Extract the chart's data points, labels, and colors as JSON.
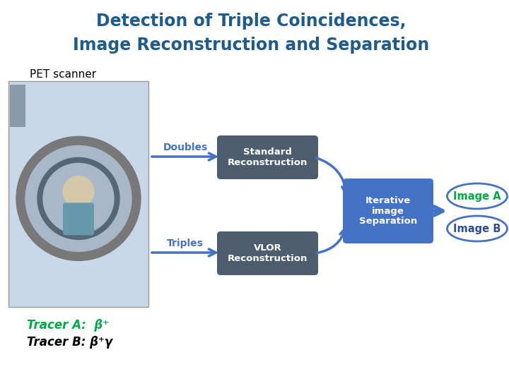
{
  "title_line1": "Detection of Triple Coincidences,",
  "title_line2": "Image Reconstruction and Separation",
  "title_color": "#1F5C8B",
  "title_fontsize": 17,
  "subtitle": "PET scanner",
  "subtitle_fontsize": 11,
  "box_doubles_text": "Standard\nReconstruction",
  "box_triples_text": "VLOR\nReconstruction",
  "box_iterative_text": "Iterative\nimage\nSeparation",
  "label_doubles": "Doubles",
  "label_triples": "Triples",
  "label_image_a": "Image A",
  "label_image_b": "Image B",
  "tracer_a_text": "Tracer A:  β⁺",
  "tracer_b_text": "Tracer B: β⁺γ",
  "dark_box_color": "#4D5D6E",
  "iterative_box_color": "#4472C4",
  "arrow_color": "#4472C4",
  "ellipse_border_color": "#4472C4",
  "image_a_text_color": "#00AA44",
  "image_b_text_color": "#2E5090",
  "tracer_a_color": "#00AA44",
  "tracer_b_color": "#000000",
  "bg_color": "#FFFFFF",
  "label_color": "#4472C4",
  "fig_width": 7.2,
  "fig_height": 5.4,
  "dpi": 100
}
